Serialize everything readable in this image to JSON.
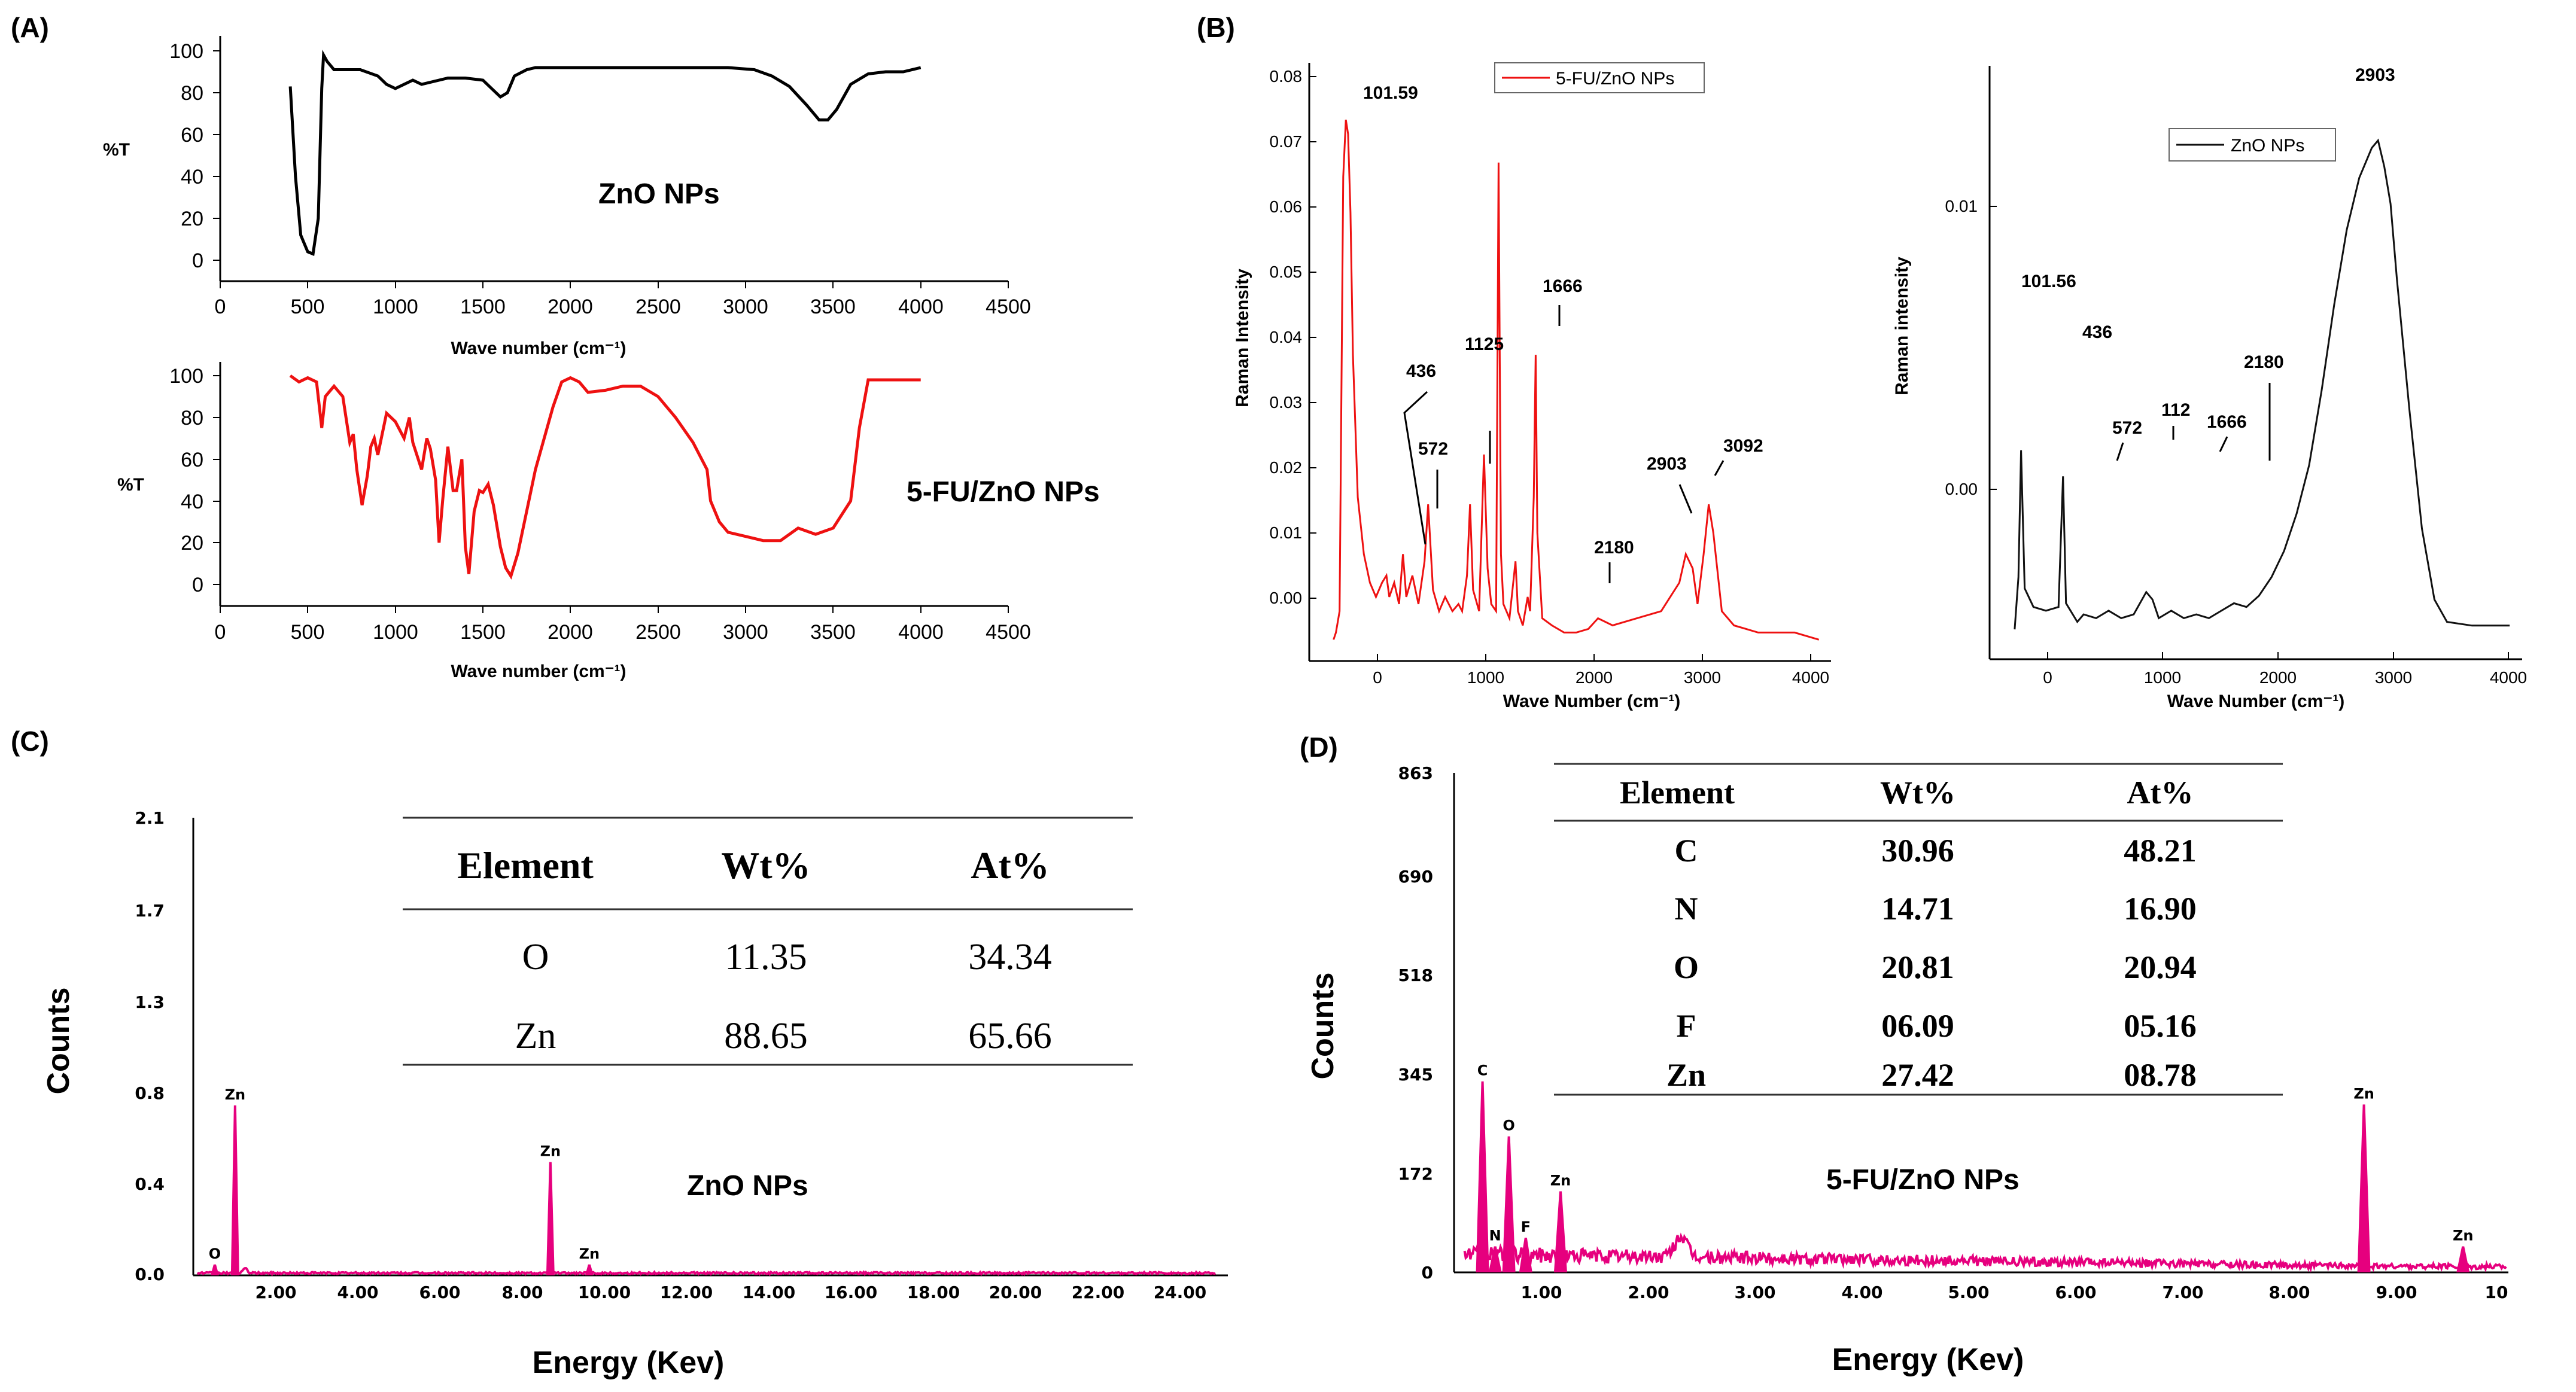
{
  "panels": {
    "a": "(A)",
    "b": "(B)",
    "c": "(C)",
    "d": "(D)"
  },
  "colors": {
    "black": "#000000",
    "red": "#ee1111",
    "magenta": "#e6007e"
  },
  "chart_data": [
    {
      "id": "ftir-zno",
      "type": "line",
      "title": "ZnO NPs",
      "xlabel": "Wave number (cm⁻¹)",
      "ylabel": "%T",
      "xlim": [
        0,
        4500
      ],
      "ylim": [
        0,
        100
      ],
      "xticks": [
        "0",
        "500",
        "1000",
        "1500",
        "2000",
        "2500",
        "3000",
        "3500",
        "4000",
        "4500"
      ],
      "yticks": [
        "0",
        "20",
        "40",
        "60",
        "80",
        "100"
      ],
      "color": "#000000",
      "points": [
        [
          400,
          83
        ],
        [
          430,
          40
        ],
        [
          460,
          12
        ],
        [
          500,
          4
        ],
        [
          530,
          3
        ],
        [
          560,
          20
        ],
        [
          580,
          82
        ],
        [
          590,
          98
        ],
        [
          610,
          95
        ],
        [
          650,
          91
        ],
        [
          700,
          91
        ],
        [
          800,
          91
        ],
        [
          900,
          88
        ],
        [
          950,
          84
        ],
        [
          1000,
          82
        ],
        [
          1050,
          84
        ],
        [
          1100,
          86
        ],
        [
          1150,
          84
        ],
        [
          1200,
          85
        ],
        [
          1300,
          87
        ],
        [
          1400,
          87
        ],
        [
          1500,
          86
        ],
        [
          1550,
          82
        ],
        [
          1600,
          78
        ],
        [
          1640,
          80
        ],
        [
          1680,
          88
        ],
        [
          1750,
          91
        ],
        [
          1800,
          92
        ],
        [
          2000,
          92
        ],
        [
          2500,
          92
        ],
        [
          2900,
          92
        ],
        [
          3050,
          91
        ],
        [
          3150,
          88
        ],
        [
          3250,
          83
        ],
        [
          3350,
          74
        ],
        [
          3420,
          67
        ],
        [
          3470,
          67
        ],
        [
          3520,
          72
        ],
        [
          3600,
          84
        ],
        [
          3700,
          89
        ],
        [
          3800,
          90
        ],
        [
          3900,
          90
        ],
        [
          4000,
          92
        ]
      ]
    },
    {
      "id": "ftir-5fu",
      "type": "line",
      "title": "5-FU/ZnO NPs",
      "xlabel": "Wave number (cm⁻¹)",
      "ylabel": "%T",
      "xlim": [
        0,
        4500
      ],
      "ylim": [
        0,
        100
      ],
      "xticks": [
        "0",
        "500",
        "1000",
        "1500",
        "2000",
        "2500",
        "3000",
        "3500",
        "4000",
        "4500"
      ],
      "yticks": [
        "0",
        "20",
        "40",
        "60",
        "80",
        "100"
      ],
      "color": "#ee1111",
      "points": [
        [
          400,
          100
        ],
        [
          450,
          97
        ],
        [
          500,
          99
        ],
        [
          550,
          97
        ],
        [
          580,
          75
        ],
        [
          600,
          90
        ],
        [
          650,
          95
        ],
        [
          700,
          90
        ],
        [
          740,
          68
        ],
        [
          760,
          72
        ],
        [
          780,
          55
        ],
        [
          810,
          38
        ],
        [
          840,
          52
        ],
        [
          860,
          66
        ],
        [
          880,
          70
        ],
        [
          900,
          62
        ],
        [
          950,
          82
        ],
        [
          1000,
          78
        ],
        [
          1050,
          70
        ],
        [
          1080,
          80
        ],
        [
          1100,
          68
        ],
        [
          1150,
          55
        ],
        [
          1180,
          70
        ],
        [
          1200,
          65
        ],
        [
          1230,
          50
        ],
        [
          1250,
          20
        ],
        [
          1270,
          40
        ],
        [
          1300,
          66
        ],
        [
          1330,
          45
        ],
        [
          1350,
          45
        ],
        [
          1380,
          60
        ],
        [
          1400,
          18
        ],
        [
          1420,
          5
        ],
        [
          1450,
          35
        ],
        [
          1480,
          45
        ],
        [
          1500,
          44
        ],
        [
          1530,
          48
        ],
        [
          1560,
          38
        ],
        [
          1600,
          18
        ],
        [
          1630,
          8
        ],
        [
          1660,
          4
        ],
        [
          1700,
          15
        ],
        [
          1800,
          55
        ],
        [
          1900,
          85
        ],
        [
          1950,
          97
        ],
        [
          2000,
          99
        ],
        [
          2050,
          97
        ],
        [
          2100,
          92
        ],
        [
          2200,
          93
        ],
        [
          2300,
          95
        ],
        [
          2400,
          95
        ],
        [
          2500,
          90
        ],
        [
          2600,
          80
        ],
        [
          2700,
          68
        ],
        [
          2780,
          55
        ],
        [
          2800,
          40
        ],
        [
          2850,
          30
        ],
        [
          2900,
          25
        ],
        [
          3000,
          23
        ],
        [
          3100,
          21
        ],
        [
          3200,
          21
        ],
        [
          3300,
          27
        ],
        [
          3400,
          24
        ],
        [
          3500,
          27
        ],
        [
          3600,
          40
        ],
        [
          3650,
          75
        ],
        [
          3700,
          98
        ],
        [
          3800,
          98
        ],
        [
          3900,
          98
        ],
        [
          4000,
          98
        ]
      ]
    },
    {
      "id": "raman-5fu",
      "type": "line",
      "xlabel": "Wave Number (cm⁻¹)",
      "ylabel": "Raman Intensity",
      "xlim": [
        -200,
        4100
      ],
      "ylim": [
        -0.003,
        0.081
      ],
      "xticks": [
        "0",
        "1000",
        "2000",
        "3000",
        "4000"
      ],
      "yticks": [
        "0.00",
        "0.01",
        "0.02",
        "0.03",
        "0.04",
        "0.05",
        "0.06",
        "0.07",
        "0.08"
      ],
      "legend": "5-FU/ZnO NPs",
      "color": "#ee1111",
      "annotations": [
        "101.59",
        "436",
        "572",
        "1125",
        "1666",
        "2180",
        "2903",
        "3092"
      ],
      "points": [
        [
          0,
          0.0
        ],
        [
          20,
          0.001
        ],
        [
          50,
          0.004
        ],
        [
          80,
          0.065
        ],
        [
          101.59,
          0.073
        ],
        [
          120,
          0.071
        ],
        [
          140,
          0.06
        ],
        [
          160,
          0.04
        ],
        [
          200,
          0.02
        ],
        [
          250,
          0.012
        ],
        [
          300,
          0.008
        ],
        [
          350,
          0.006
        ],
        [
          400,
          0.008
        ],
        [
          436,
          0.009
        ],
        [
          460,
          0.006
        ],
        [
          500,
          0.008
        ],
        [
          540,
          0.005
        ],
        [
          572,
          0.012
        ],
        [
          600,
          0.006
        ],
        [
          650,
          0.009
        ],
        [
          700,
          0.005
        ],
        [
          750,
          0.011
        ],
        [
          780,
          0.019
        ],
        [
          820,
          0.007
        ],
        [
          870,
          0.004
        ],
        [
          920,
          0.006
        ],
        [
          980,
          0.004
        ],
        [
          1030,
          0.005
        ],
        [
          1060,
          0.004
        ],
        [
          1100,
          0.009
        ],
        [
          1125,
          0.019
        ],
        [
          1150,
          0.007
        ],
        [
          1200,
          0.004
        ],
        [
          1240,
          0.026
        ],
        [
          1270,
          0.01
        ],
        [
          1300,
          0.005
        ],
        [
          1340,
          0.004
        ],
        [
          1360,
          0.067
        ],
        [
          1380,
          0.012
        ],
        [
          1400,
          0.005
        ],
        [
          1450,
          0.003
        ],
        [
          1500,
          0.011
        ],
        [
          1520,
          0.004
        ],
        [
          1560,
          0.002
        ],
        [
          1600,
          0.006
        ],
        [
          1620,
          0.004
        ],
        [
          1650,
          0.02
        ],
        [
          1666,
          0.04
        ],
        [
          1680,
          0.015
        ],
        [
          1720,
          0.003
        ],
        [
          1800,
          0.002
        ],
        [
          1900,
          0.001
        ],
        [
          2000,
          0.001
        ],
        [
          2100,
          0.0015
        ],
        [
          2180,
          0.003
        ],
        [
          2300,
          0.002
        ],
        [
          2500,
          0.003
        ],
        [
          2700,
          0.004
        ],
        [
          2850,
          0.008
        ],
        [
          2903,
          0.012
        ],
        [
          2960,
          0.01
        ],
        [
          3000,
          0.005
        ],
        [
          3050,
          0.012
        ],
        [
          3092,
          0.019
        ],
        [
          3130,
          0.015
        ],
        [
          3200,
          0.004
        ],
        [
          3300,
          0.002
        ],
        [
          3500,
          0.001
        ],
        [
          3800,
          0.001
        ],
        [
          4000,
          0.0
        ]
      ]
    },
    {
      "id": "raman-zno",
      "type": "line",
      "xlabel": "Wave Number (cm⁻¹)",
      "ylabel": "Raman intensity",
      "xlim": [
        -150,
        4100
      ],
      "ylim": [
        -0.0007,
        0.0152
      ],
      "xticks": [
        "0",
        "1000",
        "2000",
        "3000",
        "4000"
      ],
      "yticks": [
        "0.00",
        "0.01"
      ],
      "legend": "ZnO NPs",
      "color": "#111111",
      "annotations": [
        "101.56",
        "436",
        "572",
        "112",
        "1666",
        "2180",
        "2903"
      ],
      "points": [
        [
          50,
          0.0001
        ],
        [
          80,
          0.0015
        ],
        [
          101,
          0.0049
        ],
        [
          130,
          0.0012
        ],
        [
          200,
          0.0007
        ],
        [
          300,
          0.0006
        ],
        [
          400,
          0.0007
        ],
        [
          436,
          0.0042
        ],
        [
          460,
          0.0008
        ],
        [
          550,
          0.0003
        ],
        [
          600,
          0.0005
        ],
        [
          700,
          0.0004
        ],
        [
          800,
          0.0006
        ],
        [
          900,
          0.0004
        ],
        [
          1000,
          0.0005
        ],
        [
          1100,
          0.0011
        ],
        [
          1150,
          0.0009
        ],
        [
          1200,
          0.0004
        ],
        [
          1300,
          0.0006
        ],
        [
          1400,
          0.0004
        ],
        [
          1500,
          0.0005
        ],
        [
          1600,
          0.0004
        ],
        [
          1700,
          0.0006
        ],
        [
          1800,
          0.0008
        ],
        [
          1900,
          0.0007
        ],
        [
          2000,
          0.001
        ],
        [
          2100,
          0.0015
        ],
        [
          2200,
          0.0022
        ],
        [
          2300,
          0.0032
        ],
        [
          2400,
          0.0045
        ],
        [
          2500,
          0.0065
        ],
        [
          2600,
          0.0088
        ],
        [
          2700,
          0.0108
        ],
        [
          2800,
          0.0122
        ],
        [
          2900,
          0.013
        ],
        [
          2950,
          0.0132
        ],
        [
          3000,
          0.0125
        ],
        [
          3050,
          0.0115
        ],
        [
          3100,
          0.0095
        ],
        [
          3200,
          0.006
        ],
        [
          3300,
          0.0028
        ],
        [
          3400,
          0.0009
        ],
        [
          3500,
          0.0003
        ],
        [
          3700,
          0.0002
        ],
        [
          4000,
          0.0002
        ]
      ]
    },
    {
      "id": "eds-zno",
      "type": "bar",
      "title": "ZnO NPs",
      "xlabel": "Energy (Kev)",
      "ylabel": "Counts",
      "xlim": [
        0,
        25
      ],
      "ylim": [
        0,
        2.1
      ],
      "xticks": [
        "2.00",
        "4.00",
        "6.00",
        "8.00",
        "10.00",
        "12.00",
        "14.00",
        "16.00",
        "18.00",
        "20.00",
        "22.00",
        "24.00"
      ],
      "yticks": [
        "0.0",
        "0.4",
        "0.8",
        "1.3",
        "1.7",
        "2.1"
      ],
      "color": "#e6007e",
      "peaks": [
        {
          "x": 0.52,
          "y": 0.05,
          "label": "O"
        },
        {
          "x": 1.01,
          "y": 0.78,
          "label": "Zn"
        },
        {
          "x": 8.63,
          "y": 0.52,
          "label": "Zn"
        },
        {
          "x": 9.57,
          "y": 0.05,
          "label": "Zn"
        }
      ],
      "table": {
        "headers": [
          "Element",
          "Wt%",
          "At%"
        ],
        "rows": [
          [
            "O",
            "11.35",
            "34.34"
          ],
          [
            "Zn",
            "88.65",
            "65.66"
          ]
        ]
      }
    },
    {
      "id": "eds-5fu",
      "type": "bar",
      "title": "5-FU/ZnO NPs",
      "xlabel": "Energy (Kev)",
      "ylabel": "Counts",
      "xlim": [
        0,
        10
      ],
      "ylim": [
        0,
        863
      ],
      "xticks": [
        "1.00",
        "2.00",
        "3.00",
        "4.00",
        "5.00",
        "6.00",
        "7.00",
        "8.00",
        "9.00",
        "10"
      ],
      "yticks": [
        "0",
        "172",
        "345",
        "518",
        "690",
        "863"
      ],
      "color": "#e6007e",
      "peaks": [
        {
          "x": 0.27,
          "y": 330,
          "label": "C"
        },
        {
          "x": 0.39,
          "y": 45,
          "label": "N"
        },
        {
          "x": 0.52,
          "y": 235,
          "label": "O"
        },
        {
          "x": 0.68,
          "y": 60,
          "label": "F"
        },
        {
          "x": 1.01,
          "y": 140,
          "label": "Zn"
        },
        {
          "x": 8.63,
          "y": 290,
          "label": "Zn"
        },
        {
          "x": 9.57,
          "y": 45,
          "label": "Zn"
        }
      ],
      "table": {
        "headers": [
          "Element",
          "Wt%",
          "At%"
        ],
        "rows": [
          [
            "C",
            "30.96",
            "48.21"
          ],
          [
            "N",
            "14.71",
            "16.90"
          ],
          [
            "O",
            "20.81",
            "20.94"
          ],
          [
            "F",
            "06.09",
            "05.16"
          ],
          [
            "Zn",
            "27.42",
            "08.78"
          ]
        ]
      }
    }
  ]
}
